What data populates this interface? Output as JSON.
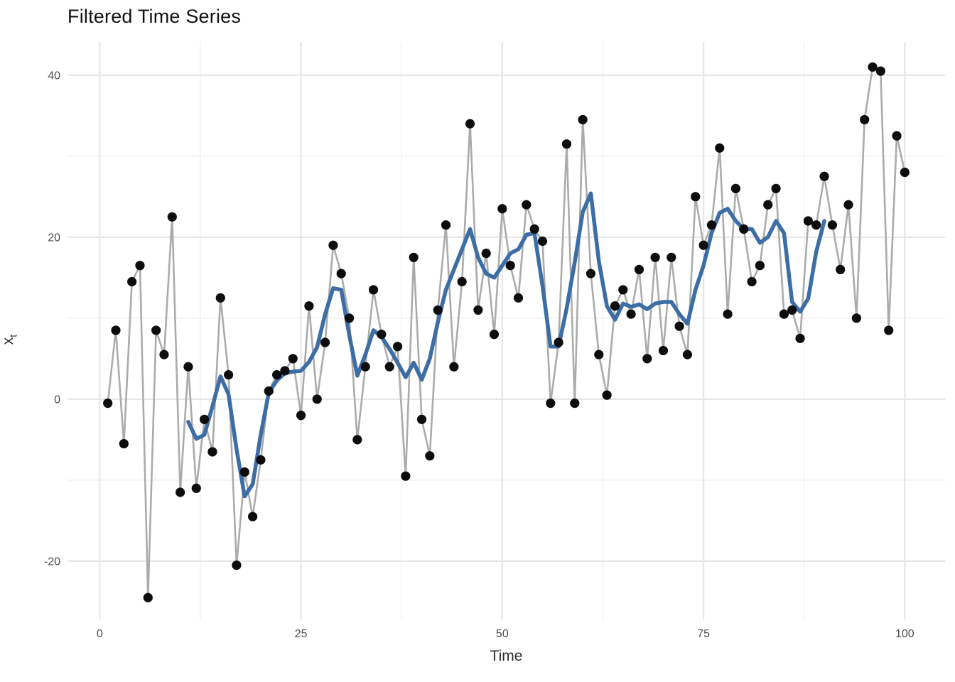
{
  "chart_data": {
    "type": "line",
    "title": "Filtered Time Series",
    "xlabel": "Time",
    "ylabel_main": "x",
    "ylabel_sub": "t",
    "xlim": [
      -4,
      105
    ],
    "ylim": [
      -27.2,
      44.1
    ],
    "grid": "on",
    "legend": "none",
    "x_major_ticks": [
      0,
      25,
      50,
      75,
      100
    ],
    "x_minor_ticks": [
      12.5,
      37.5,
      62.5,
      87.5
    ],
    "y_major_ticks": [
      -20,
      0,
      20,
      40
    ],
    "y_minor_ticks": [
      -10,
      10,
      30
    ],
    "series": [
      {
        "name": "observed",
        "style": "line+points",
        "x_start": 1,
        "values": [
          -0.5,
          8.5,
          -5.5,
          14.5,
          16.5,
          -24.5,
          8.5,
          5.5,
          22.5,
          -11.5,
          4.0,
          -11.0,
          -2.5,
          -6.5,
          12.5,
          3.0,
          -20.5,
          -9.0,
          -14.5,
          -7.5,
          1.0,
          3.0,
          3.5,
          5.0,
          -2.0,
          11.5,
          0.0,
          7.0,
          19.0,
          15.5,
          10.0,
          -5.0,
          4.0,
          13.5,
          8.0,
          4.0,
          6.5,
          -9.5,
          17.5,
          -2.5,
          -7.0,
          11.0,
          21.5,
          4.0,
          14.5,
          34.0,
          11.0,
          18.0,
          8.0,
          23.5,
          16.5,
          12.5,
          24.0,
          21.0,
          19.5,
          -0.5,
          7.0,
          31.5,
          -0.5,
          34.5,
          15.5,
          5.5,
          0.5,
          11.5,
          13.5,
          10.5,
          16.0,
          5.0,
          17.5,
          6.0,
          17.5,
          9.0,
          5.5,
          25.0,
          19.0,
          21.5,
          31.0,
          10.5,
          26.0,
          21.0,
          14.5,
          16.5,
          24.0,
          26.0,
          10.5,
          11.0,
          7.5,
          22.0,
          21.5,
          27.5,
          21.5,
          16.0,
          24.0,
          10.0,
          34.5,
          41.0,
          40.5,
          8.5,
          32.5,
          28.0
        ]
      },
      {
        "name": "filtered",
        "style": "line",
        "x_start": 11,
        "values": [
          -2.8,
          -4.9,
          -4.4,
          -0.9,
          2.8,
          0.6,
          -6.2,
          -12.0,
          -10.5,
          -4.4,
          0.8,
          2.3,
          3.2,
          3.4,
          3.5,
          4.6,
          6.4,
          10.5,
          13.7,
          13.5,
          7.9,
          2.9,
          5.5,
          8.5,
          7.7,
          6.2,
          4.5,
          2.7,
          4.5,
          2.4,
          5.0,
          9.5,
          13.5,
          16.0,
          18.5,
          21.0,
          17.5,
          15.5,
          15.0,
          16.5,
          18.0,
          18.5,
          20.3,
          20.5,
          14.0,
          6.5,
          6.5,
          11.2,
          16.9,
          23.1,
          25.4,
          17.0,
          11.5,
          9.8,
          11.8,
          11.4,
          11.7,
          11.1,
          11.8,
          12.0,
          12.0,
          10.5,
          9.3,
          13.5,
          16.5,
          20.5,
          23.0,
          23.5,
          22.0,
          21.0,
          21.0,
          19.3,
          20.0,
          22.0,
          20.5,
          12.0,
          10.8,
          12.4,
          18.2,
          22.0
        ]
      }
    ]
  },
  "labels": {
    "title": "Filtered Time Series",
    "xlabel": "Time",
    "ylabel_main": "x",
    "ylabel_sub": "t"
  },
  "colors": {
    "background": "#ffffff",
    "observed_line": "#ababab",
    "observed_point": "#0d0d0d",
    "filtered_line": "#3c6da4",
    "grid_major": "#e6e6e6",
    "grid_minor": "#f1f1f1",
    "tick_text": "#4d4d4d",
    "axis_title_text": "#2b2b2b",
    "title_text": "#111111"
  }
}
